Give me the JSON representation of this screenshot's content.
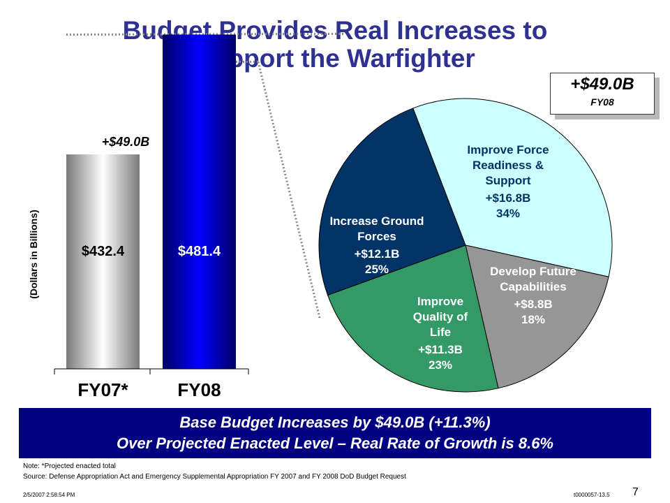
{
  "slide": {
    "title_line1": "Budget Provides Real Increases to",
    "title_line2": "Support the Warfighter",
    "callout_value": "+$49.0B",
    "callout_label": "FY08",
    "banner_line1": "Base Budget Increases by $49.0B (+11.3%)",
    "banner_line2": "Over Projected Enacted Level – Real Rate of Growth is 8.6%",
    "note": "Note: *Projected enacted total",
    "source": "Source:  Defense Appropriation Act and Emergency Supplemental Appropriation FY 2007 and FY 2008 DoD Budget Request",
    "timestamp": "2/5/2007 2:58:54 PM",
    "doc_id": "t0000057-13.5",
    "page_number": "7"
  },
  "chart_data": [
    {
      "type": "bar",
      "ylabel": "(Dollars in Billions)",
      "categories": [
        "FY07*",
        "FY08"
      ],
      "values": [
        432.4,
        481.4
      ],
      "value_labels": [
        "$432.4",
        "$481.4"
      ],
      "annotation": "+$49.0B",
      "colors": [
        "#d0d0d0",
        "#0000cc"
      ]
    },
    {
      "type": "pie",
      "slices": [
        {
          "label_lines": [
            "Improve Force",
            "Readiness &",
            "Support"
          ],
          "value_label": "+$16.8B",
          "value": 16.8,
          "percent_label": "34%",
          "color": "#ccffff"
        },
        {
          "label_lines": [
            "Develop Future",
            "Capabilities"
          ],
          "value_label": "+$8.8B",
          "value": 8.8,
          "percent_label": "18%",
          "color": "#969696"
        },
        {
          "label_lines": [
            "Improve",
            "Quality of",
            "Life"
          ],
          "value_label": "+$11.3B",
          "value": 11.3,
          "percent_label": "23%",
          "color": "#339966"
        },
        {
          "label_lines": [
            "Increase Ground",
            "Forces"
          ],
          "value_label": "+$12.1B",
          "value": 12.1,
          "percent_label": "25%",
          "color": "#003366"
        }
      ]
    }
  ]
}
